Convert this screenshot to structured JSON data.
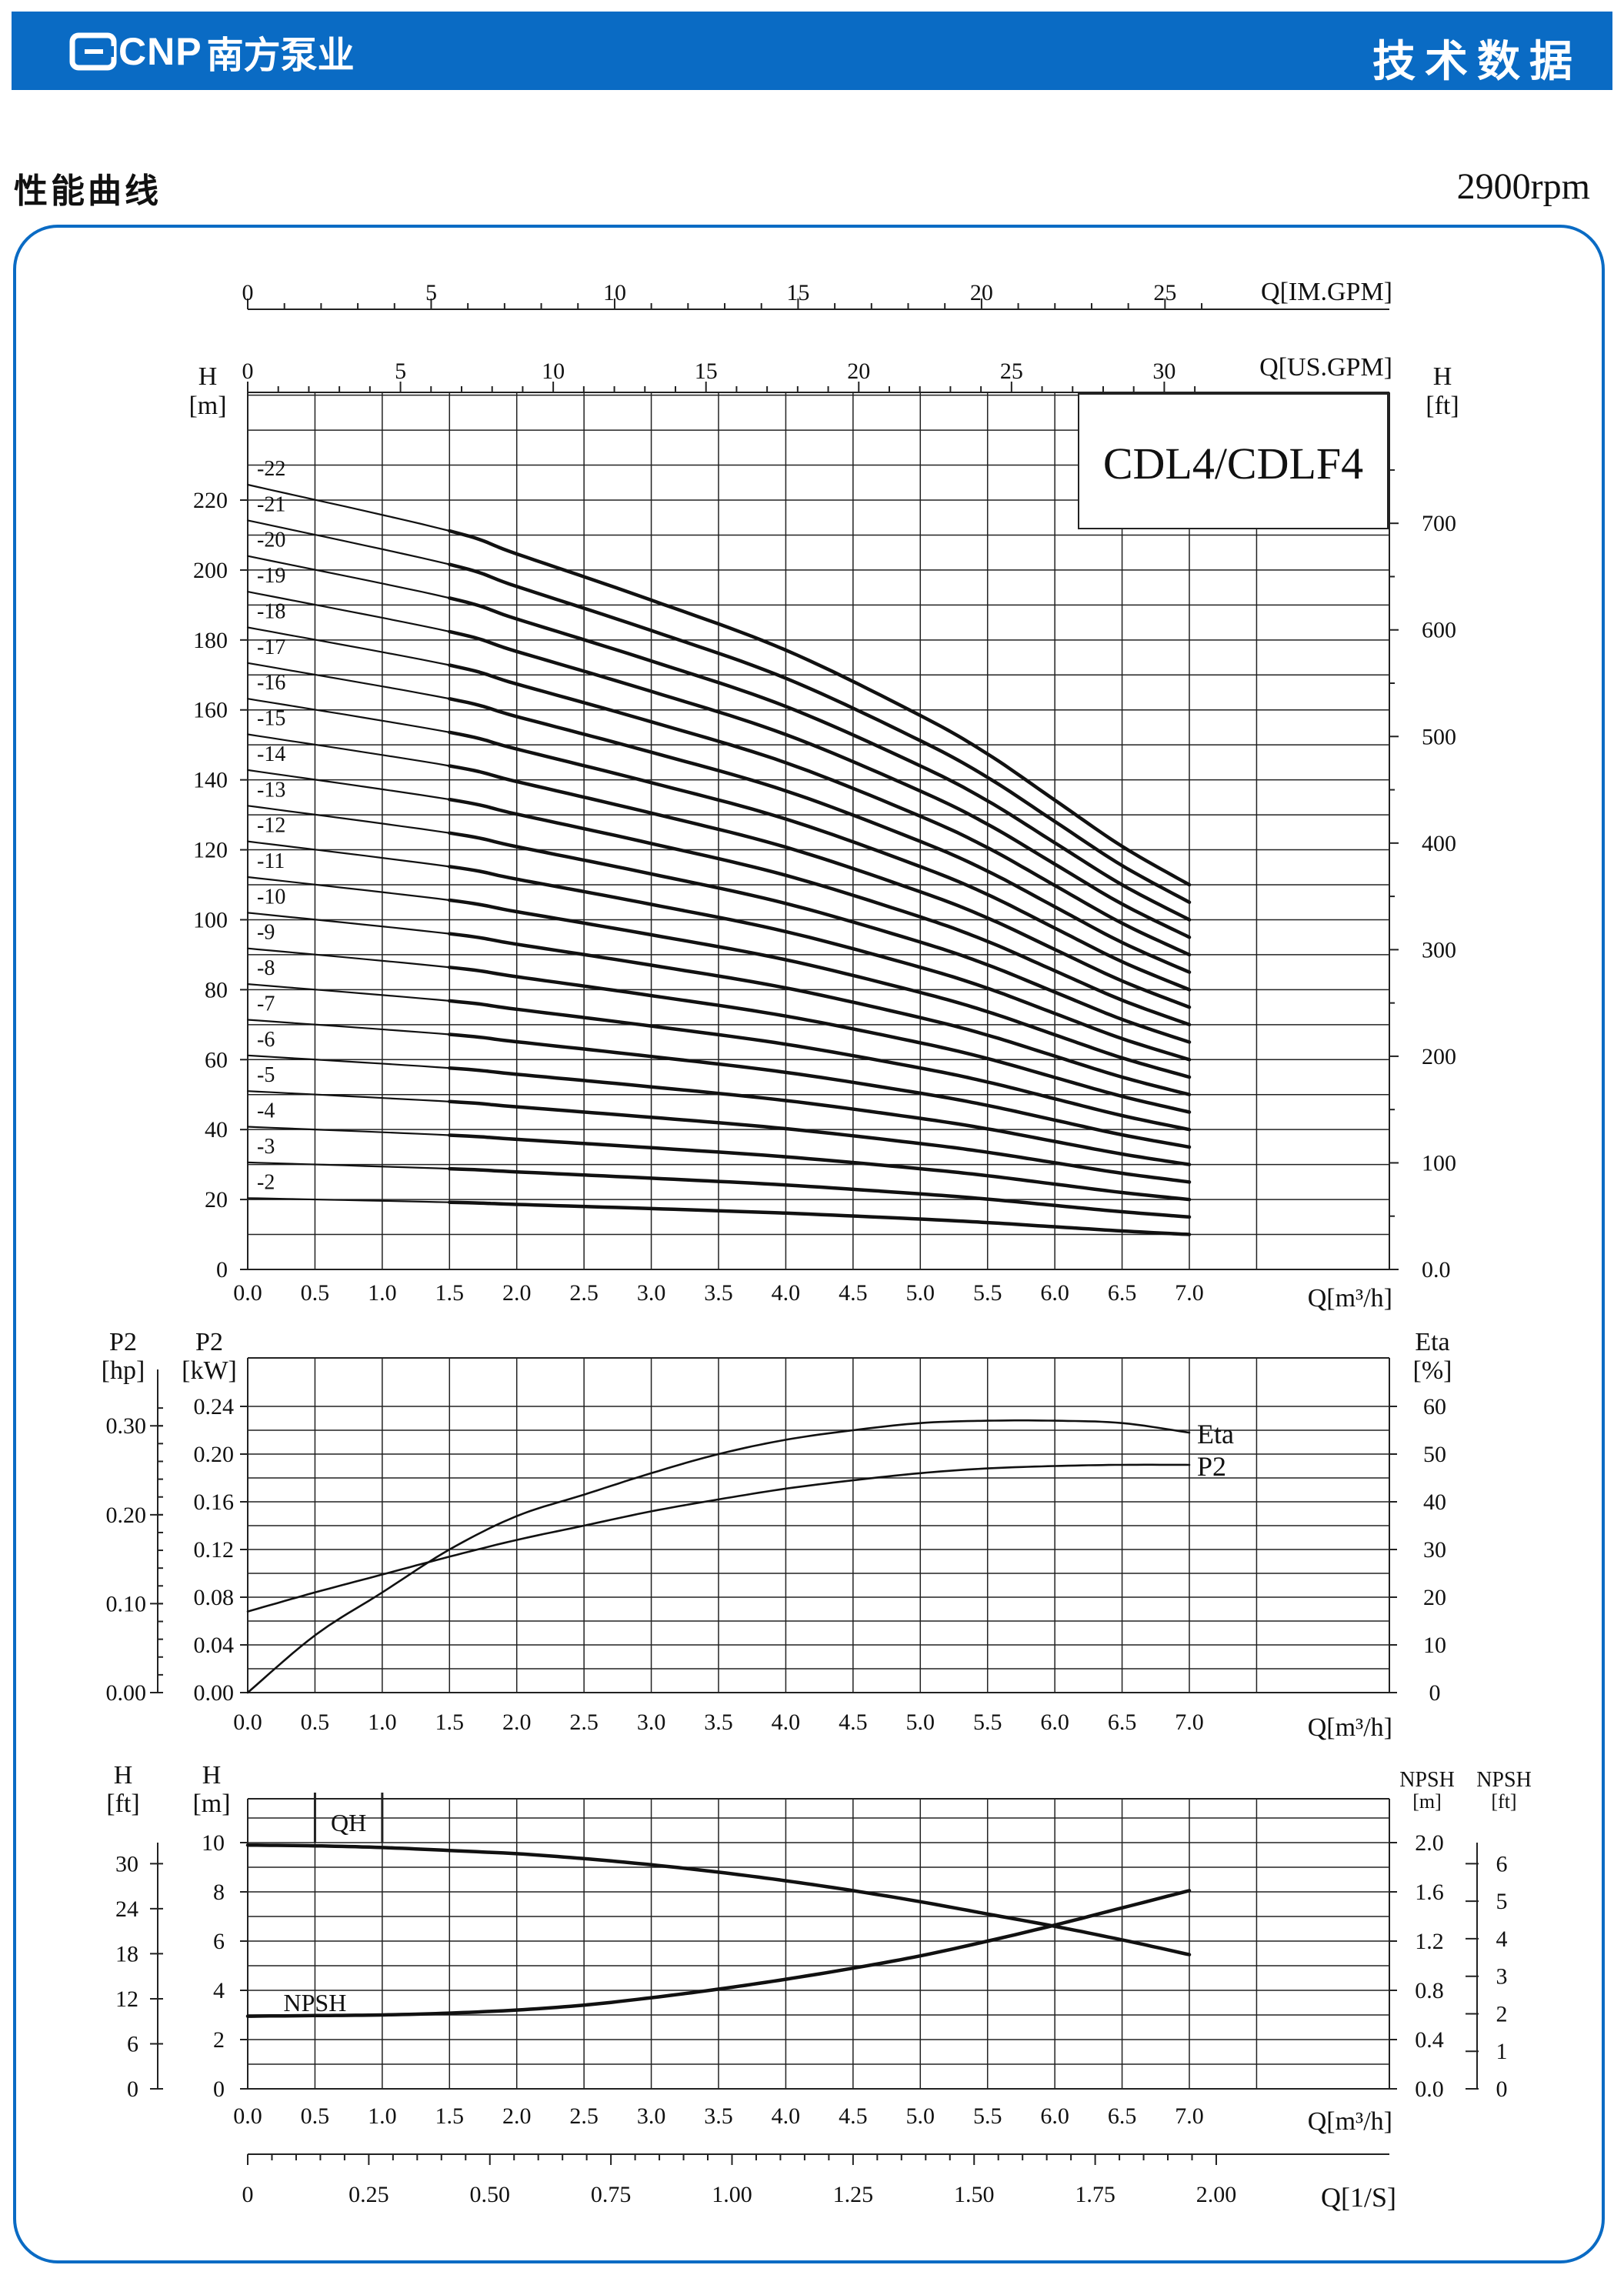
{
  "header": {
    "brand_code": "CNP",
    "brand_name": "南方泵业",
    "section": "技术数据"
  },
  "page_title": "性能曲线",
  "speed": "2900rpm",
  "chart_data": [
    {
      "type": "line",
      "model_label": "CDL4/CDLF4",
      "xlabel": "Q[m³/h]",
      "xlim": [
        0,
        7.0
      ],
      "x_ticks": [
        "0.0",
        "0.5",
        "1.0",
        "1.5",
        "2.0",
        "2.5",
        "3.0",
        "3.5",
        "4.0",
        "4.5",
        "5.0",
        "5.5",
        "6.0",
        "6.5",
        "7.0"
      ],
      "top_axes": [
        {
          "label": "Q[IM.GPM]",
          "ticks": [
            "0",
            "5",
            "10",
            "15",
            "20",
            "25"
          ]
        },
        {
          "label": "Q[US.GPM]",
          "ticks": [
            "0",
            "5",
            "10",
            "15",
            "20",
            "25",
            "30"
          ]
        }
      ],
      "ylabel_left": "H [m]",
      "ylim": [
        0,
        240
      ],
      "y_ticks_left": [
        "0",
        "20",
        "40",
        "60",
        "80",
        "100",
        "120",
        "140",
        "160",
        "180",
        "200",
        "220"
      ],
      "ylabel_right": "H [ft]",
      "y_ticks_right": [
        "0.0",
        "100",
        "200",
        "300",
        "400",
        "500",
        "600",
        "700"
      ],
      "grid": true,
      "stage_labels": [
        "-22",
        "-21",
        "-20",
        "-19",
        "-18",
        "-17",
        "-16",
        "-15",
        "-14",
        "-13",
        "-12",
        "-11",
        "-10",
        "-9",
        "-8",
        "-7",
        "-6",
        "-5",
        "-4",
        "-3",
        "-2"
      ],
      "single_stage_curve": {
        "x": [
          0,
          1.5,
          2,
          3,
          4,
          5,
          5.5,
          6,
          6.5,
          7
        ],
        "head_per_stage_m": [
          10.2,
          9.6,
          9.3,
          8.7,
          8.05,
          7.2,
          6.7,
          6.1,
          5.5,
          5.0
        ]
      },
      "stages": [
        22,
        21,
        20,
        19,
        18,
        17,
        16,
        15,
        14,
        13,
        12,
        11,
        10,
        9,
        8,
        7,
        6,
        5,
        4,
        3,
        2
      ]
    },
    {
      "type": "line",
      "xlabel": "Q[m³/h]",
      "xlim": [
        0,
        7.0
      ],
      "x_ticks": [
        "0.0",
        "0.5",
        "1.0",
        "1.5",
        "2.0",
        "2.5",
        "3.0",
        "3.5",
        "4.0",
        "4.5",
        "5.0",
        "5.5",
        "6.0",
        "6.5",
        "7.0"
      ],
      "ylabel_hp": "P2 [hp]",
      "y_ticks_hp": [
        "0.00",
        "0.10",
        "0.20",
        "0.30"
      ],
      "ylabel_kw": "P2 [kW]",
      "ylim_kw": [
        0,
        0.24
      ],
      "y_ticks_kw": [
        "0.00",
        "0.04",
        "0.08",
        "0.12",
        "0.16",
        "0.20",
        "0.24"
      ],
      "ylabel_right": "Eta [%]",
      "ylim_eta": [
        0,
        60
      ],
      "y_ticks_right": [
        "0",
        "10",
        "20",
        "30",
        "40",
        "50",
        "60"
      ],
      "grid": true,
      "series": [
        {
          "name": "Eta",
          "axis": "eta",
          "x": [
            0,
            0.5,
            1,
            1.5,
            2,
            2.5,
            3,
            3.5,
            4,
            4.5,
            5,
            5.5,
            6,
            6.5,
            7
          ],
          "values": [
            0,
            12,
            21,
            30,
            37,
            41.5,
            46,
            50,
            53,
            55,
            56.5,
            57,
            57,
            56.5,
            54.5
          ]
        },
        {
          "name": "P2",
          "axis": "kw",
          "x": [
            0,
            0.5,
            1,
            1.5,
            2,
            2.5,
            3,
            3.5,
            4,
            4.5,
            5,
            5.5,
            6,
            6.5,
            7
          ],
          "values": [
            0.068,
            0.084,
            0.099,
            0.114,
            0.128,
            0.14,
            0.152,
            0.162,
            0.171,
            0.178,
            0.184,
            0.188,
            0.19,
            0.191,
            0.191
          ]
        }
      ]
    },
    {
      "type": "line",
      "xlabel": "Q[m³/h]",
      "xlim": [
        0,
        7.0
      ],
      "x_ticks": [
        "0.0",
        "0.5",
        "1.0",
        "1.5",
        "2.0",
        "2.5",
        "3.0",
        "3.5",
        "4.0",
        "4.5",
        "5.0",
        "5.5",
        "6.0",
        "6.5",
        "7.0"
      ],
      "ylabel_ft": "H [ft]",
      "y_ticks_ft": [
        "0",
        "6",
        "12",
        "18",
        "24",
        "30"
      ],
      "ylabel_m": "H [m]",
      "ylim_m": [
        0,
        10
      ],
      "y_ticks_m": [
        "0",
        "2",
        "4",
        "6",
        "8",
        "10"
      ],
      "ylabel_npsh_m": "NPSH [m]",
      "ylim_npsh_m": [
        0,
        2.0
      ],
      "y_ticks_npsh_m": [
        "0.0",
        "0.4",
        "0.8",
        "1.2",
        "1.6",
        "2.0"
      ],
      "ylabel_npsh_ft": "NPSH [ft]",
      "y_ticks_npsh_ft": [
        "0",
        "1",
        "2",
        "3",
        "4",
        "5",
        "6"
      ],
      "grid": true,
      "series": [
        {
          "name": "QH",
          "axis": "m",
          "x": [
            0,
            0.5,
            1,
            1.5,
            2,
            2.5,
            3,
            3.5,
            4,
            4.5,
            5,
            5.5,
            6,
            6.5,
            7
          ],
          "values": [
            9.9,
            9.87,
            9.8,
            9.68,
            9.55,
            9.35,
            9.1,
            8.8,
            8.45,
            8.05,
            7.6,
            7.1,
            6.6,
            6.05,
            5.45
          ]
        },
        {
          "name": "NPSH",
          "axis": "npsh_m",
          "x": [
            0,
            0.5,
            1,
            1.5,
            2,
            2.5,
            3,
            3.5,
            4,
            4.5,
            5,
            5.5,
            6,
            6.5,
            7
          ],
          "values": [
            0.59,
            0.595,
            0.6,
            0.615,
            0.64,
            0.68,
            0.74,
            0.81,
            0.89,
            0.98,
            1.08,
            1.2,
            1.33,
            1.47,
            1.61
          ]
        }
      ],
      "bottom_axis": {
        "label": "Q[1/S]",
        "ticks": [
          "0",
          "0.25",
          "0.50",
          "0.75",
          "1.00",
          "1.25",
          "1.50",
          "1.75",
          "2.00"
        ]
      }
    }
  ]
}
